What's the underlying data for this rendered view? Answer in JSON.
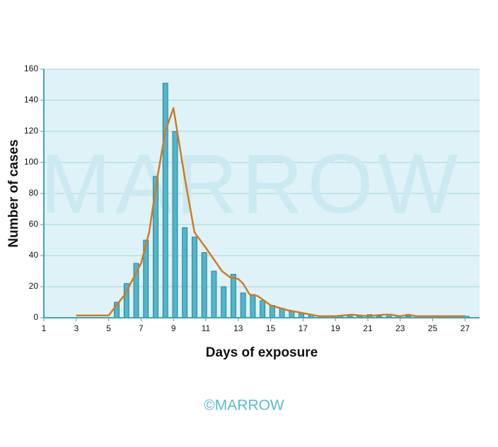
{
  "chart_data": {
    "type": "bar",
    "xlabel": "Days of exposure",
    "ylabel": "Number of cases",
    "watermark": "MARROW",
    "credit": "©MARROW",
    "x": [
      5.5,
      6.1,
      6.7,
      7.3,
      7.9,
      8.5,
      9.1,
      9.7,
      10.3,
      10.9,
      11.5,
      12.1,
      12.7,
      13.3,
      13.9,
      14.5,
      15.1,
      15.7,
      16.3,
      16.9,
      17.5,
      18.1,
      18.7,
      19.3,
      19.9,
      20.5,
      21.1,
      21.7,
      22.3,
      22.9,
      23.5,
      24.1,
      24.7,
      25.3,
      25.9,
      26.5,
      27.1
    ],
    "values": [
      10,
      22,
      35,
      50,
      91,
      151,
      120,
      58,
      52,
      42,
      30,
      20,
      28,
      16,
      15,
      11,
      8,
      6,
      4,
      3,
      2,
      1,
      1,
      1,
      1,
      1,
      2,
      1,
      1,
      1,
      1,
      1,
      1,
      1,
      1,
      1,
      1
    ],
    "color": "#4fb6cb",
    "line": {
      "color": "#d27a22",
      "x": [
        3,
        5,
        6,
        7,
        7.5,
        8,
        8.5,
        9,
        9.7,
        10.3,
        11,
        12,
        12.5,
        13,
        13.3,
        13.7,
        14.2,
        15,
        16,
        17,
        18,
        19,
        20,
        21,
        22,
        22.4,
        23,
        23.5,
        24,
        25,
        26,
        27
      ],
      "values": [
        1.5,
        1.5,
        15,
        35,
        55,
        90,
        120,
        135,
        90,
        55,
        45,
        30,
        26,
        25,
        22,
        15,
        14,
        8,
        5,
        3,
        1,
        1,
        2,
        1,
        2,
        2,
        1,
        2,
        1,
        1,
        1,
        1
      ]
    },
    "xlim": [
      1,
      27.9
    ],
    "ylim": [
      0,
      160
    ],
    "xticks": [
      1,
      3,
      5,
      7,
      9,
      11,
      13,
      15,
      17,
      19,
      21,
      23,
      25,
      27
    ],
    "yticks": [
      0,
      20,
      40,
      60,
      80,
      100,
      120,
      140,
      160
    ],
    "grid": true
  }
}
